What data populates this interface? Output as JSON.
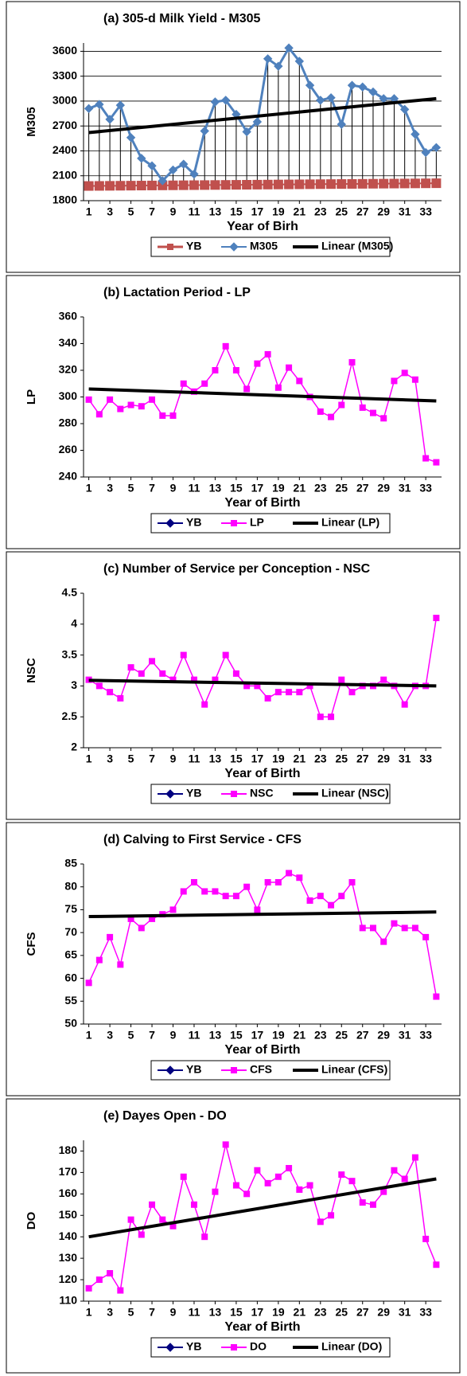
{
  "chart_data": [
    {
      "type": "line",
      "title": "(a) 305-d Milk Yield - M305",
      "x_label": "Year of Birh",
      "y_label": "M305",
      "x": [
        1,
        2,
        3,
        4,
        5,
        6,
        7,
        8,
        9,
        10,
        11,
        12,
        13,
        14,
        15,
        16,
        17,
        18,
        19,
        20,
        21,
        22,
        23,
        24,
        25,
        26,
        27,
        28,
        29,
        30,
        31,
        32,
        33,
        34
      ],
      "xlim": [
        0.5,
        34.5
      ],
      "xticks": [
        1,
        3,
        5,
        7,
        9,
        11,
        13,
        15,
        17,
        19,
        21,
        23,
        25,
        27,
        29,
        31,
        33
      ],
      "ylim": [
        1800,
        3700
      ],
      "yticks": [
        1800,
        2100,
        2400,
        2700,
        3000,
        3300,
        3600
      ],
      "grid": true,
      "drop_lines": true,
      "series": [
        {
          "name": "YB",
          "color": "#c0504d",
          "marker": "square",
          "values": [
            1977,
            1978,
            1979,
            1980,
            1981,
            1982,
            1983,
            1984,
            1985,
            1986,
            1987,
            1988,
            1989,
            1990,
            1991,
            1992,
            1993,
            1994,
            1995,
            1996,
            1997,
            1998,
            1999,
            2000,
            2001,
            2002,
            2003,
            2004,
            2005,
            2006,
            2007,
            2008,
            2009,
            2010
          ]
        },
        {
          "name": "M305",
          "color": "#4f81bd",
          "marker": "diamond",
          "values": [
            2910,
            2960,
            2780,
            2950,
            2560,
            2310,
            2220,
            2040,
            2170,
            2240,
            2120,
            2640,
            2990,
            3010,
            2840,
            2630,
            2750,
            3510,
            3420,
            3640,
            3480,
            3190,
            3010,
            3040,
            2720,
            3190,
            3170,
            3110,
            3030,
            3030,
            2900,
            2600,
            2380,
            2440
          ]
        },
        {
          "name": "Linear (M305)",
          "color": "#000000",
          "marker": "trend",
          "x": [
            1,
            34
          ],
          "values": [
            2620,
            3030
          ]
        }
      ]
    },
    {
      "type": "line",
      "title": "(b) Lactation Period - LP",
      "x_label": "Year of Birth",
      "y_label": "LP",
      "x": [
        1,
        2,
        3,
        4,
        5,
        6,
        7,
        8,
        9,
        10,
        11,
        12,
        13,
        14,
        15,
        16,
        17,
        18,
        19,
        20,
        21,
        22,
        23,
        24,
        25,
        26,
        27,
        28,
        29,
        30,
        31,
        32,
        33,
        34
      ],
      "xlim": [
        0.5,
        34.5
      ],
      "xticks": [
        1,
        3,
        5,
        7,
        9,
        11,
        13,
        15,
        17,
        19,
        21,
        23,
        25,
        27,
        29,
        31,
        33
      ],
      "ylim": [
        240,
        360
      ],
      "yticks": [
        240,
        260,
        280,
        300,
        320,
        340,
        360
      ],
      "grid": false,
      "series": [
        {
          "name": "YB",
          "color": "#000080",
          "marker": "diamond"
        },
        {
          "name": "LP",
          "color": "#ff00ff",
          "marker": "square",
          "values": [
            298,
            287,
            298,
            291,
            294,
            293,
            298,
            286,
            286,
            310,
            304,
            310,
            320,
            338,
            320,
            306,
            325,
            332,
            307,
            322,
            312,
            300,
            289,
            285,
            294,
            326,
            292,
            288,
            284,
            312,
            318,
            313,
            254,
            251
          ]
        },
        {
          "name": "Linear (LP)",
          "color": "#000000",
          "marker": "trend",
          "x": [
            1,
            34
          ],
          "values": [
            306,
            297
          ]
        }
      ]
    },
    {
      "type": "line",
      "title": "(c) Number of Service per Conception - NSC",
      "x_label": "Year of Birth",
      "y_label": "NSC",
      "x": [
        1,
        2,
        3,
        4,
        5,
        6,
        7,
        8,
        9,
        10,
        11,
        12,
        13,
        14,
        15,
        16,
        17,
        18,
        19,
        20,
        21,
        22,
        23,
        24,
        25,
        26,
        27,
        28,
        29,
        30,
        31,
        32,
        33,
        34
      ],
      "xlim": [
        0.5,
        34.5
      ],
      "xticks": [
        1,
        3,
        5,
        7,
        9,
        11,
        13,
        15,
        17,
        19,
        21,
        23,
        25,
        27,
        29,
        31,
        33
      ],
      "ylim": [
        2,
        4.5
      ],
      "yticks": [
        2,
        2.5,
        3,
        3.5,
        4,
        4.5
      ],
      "grid": false,
      "series": [
        {
          "name": "YB",
          "color": "#000080",
          "marker": "diamond"
        },
        {
          "name": "NSC",
          "color": "#ff00ff",
          "marker": "square",
          "values": [
            3.1,
            3.0,
            2.9,
            2.8,
            3.3,
            3.2,
            3.4,
            3.2,
            3.1,
            3.5,
            3.1,
            2.7,
            3.1,
            3.5,
            3.2,
            3.0,
            3.0,
            2.8,
            2.9,
            2.9,
            2.9,
            3.0,
            2.5,
            2.5,
            3.1,
            2.9,
            3.0,
            3.0,
            3.1,
            3.0,
            2.7,
            3.0,
            3.0,
            4.1
          ]
        },
        {
          "name": "Linear (NSC)",
          "color": "#000000",
          "marker": "trend",
          "x": [
            1,
            34
          ],
          "values": [
            3.09,
            3.0
          ]
        }
      ]
    },
    {
      "type": "line",
      "title": "(d) Calving to First Service - CFS",
      "x_label": "Year of Birth",
      "y_label": "CFS",
      "x": [
        1,
        2,
        3,
        4,
        5,
        6,
        7,
        8,
        9,
        10,
        11,
        12,
        13,
        14,
        15,
        16,
        17,
        18,
        19,
        20,
        21,
        22,
        23,
        24,
        25,
        26,
        27,
        28,
        29,
        30,
        31,
        32,
        33,
        34
      ],
      "xlim": [
        0.5,
        34.5
      ],
      "xticks": [
        1,
        3,
        5,
        7,
        9,
        11,
        13,
        15,
        17,
        19,
        21,
        23,
        25,
        27,
        29,
        31,
        33
      ],
      "ylim": [
        50,
        85
      ],
      "yticks": [
        50,
        55,
        60,
        65,
        70,
        75,
        80,
        85
      ],
      "grid": false,
      "series": [
        {
          "name": "YB",
          "color": "#000080",
          "marker": "diamond"
        },
        {
          "name": "CFS",
          "color": "#ff00ff",
          "marker": "square",
          "values": [
            59,
            64,
            69,
            63,
            73,
            71,
            73,
            74,
            75,
            79,
            81,
            79,
            79,
            78,
            78,
            80,
            75,
            81,
            81,
            83,
            82,
            77,
            78,
            76,
            78,
            81,
            71,
            71,
            68,
            72,
            71,
            71,
            69,
            56
          ]
        },
        {
          "name": "Linear (CFS)",
          "color": "#000000",
          "marker": "trend",
          "x": [
            1,
            34
          ],
          "values": [
            73.5,
            74.5
          ]
        }
      ]
    },
    {
      "type": "line",
      "title": "(e) Dayes Open - DO",
      "x_label": "Year of Birth",
      "y_label": "DO",
      "x": [
        1,
        2,
        3,
        4,
        5,
        6,
        7,
        8,
        9,
        10,
        11,
        12,
        13,
        14,
        15,
        16,
        17,
        18,
        19,
        20,
        21,
        22,
        23,
        24,
        25,
        26,
        27,
        28,
        29,
        30,
        31,
        32,
        33,
        34
      ],
      "xlim": [
        0.5,
        34.5
      ],
      "xticks": [
        1,
        3,
        5,
        7,
        9,
        11,
        13,
        15,
        17,
        19,
        21,
        23,
        25,
        27,
        29,
        31,
        33
      ],
      "ylim": [
        110,
        185
      ],
      "yticks": [
        110,
        120,
        130,
        140,
        150,
        160,
        170,
        180
      ],
      "grid": false,
      "series": [
        {
          "name": "YB",
          "color": "#000080",
          "marker": "diamond"
        },
        {
          "name": "DO",
          "color": "#ff00ff",
          "marker": "square",
          "values": [
            116,
            120,
            123,
            115,
            148,
            141,
            155,
            148,
            145,
            168,
            155,
            140,
            161,
            183,
            164,
            160,
            171,
            165,
            168,
            172,
            162,
            164,
            147,
            150,
            169,
            166,
            156,
            155,
            161,
            171,
            167,
            177,
            139,
            127
          ]
        },
        {
          "name": "Linear (DO)",
          "color": "#000000",
          "marker": "trend",
          "x": [
            1,
            34
          ],
          "values": [
            140,
            167
          ]
        }
      ]
    }
  ]
}
